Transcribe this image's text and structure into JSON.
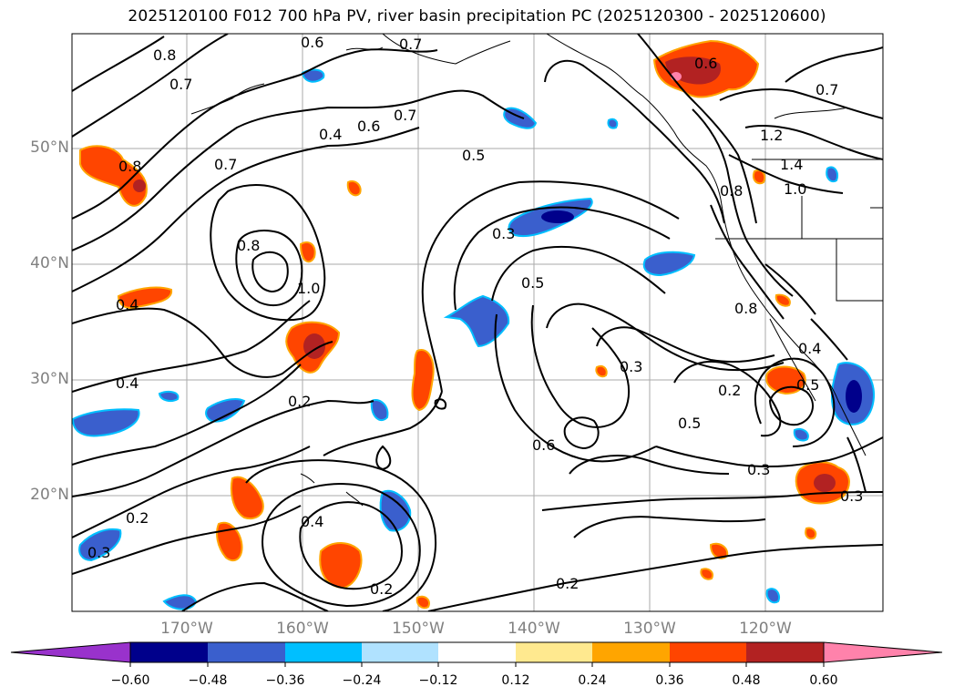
{
  "title": "2025120100 F012 700 hPa PV, river basin precipitation PC (2025120300 - 2025120600)",
  "map": {
    "lat_labels": [
      "50°N",
      "40°N",
      "30°N",
      "20°N"
    ],
    "lon_labels": [
      "170°W",
      "160°W",
      "150°W",
      "140°W",
      "130°W",
      "120°W"
    ],
    "contour_labels": [
      "0.8",
      "0.7",
      "0.6",
      "0.7",
      "0.7",
      "0.6",
      "0.6",
      "0.4",
      "0.7",
      "0.5",
      "0.8",
      "0.7",
      "0.8",
      "1.0",
      "0.3",
      "0.5",
      "0.4",
      "1.2",
      "1.4",
      "1.0",
      "0.8",
      "0.8",
      "0.4",
      "0.3",
      "0.2",
      "0.5",
      "0.4",
      "0.5",
      "0.6",
      "0.3",
      "0.3",
      "0.2",
      "0.2",
      "0.4",
      "0.2",
      "0.2",
      "0.3"
    ]
  },
  "colorbar": {
    "colors": [
      "#9932CC",
      "#00008B",
      "#3A5FCD",
      "#00BFFF",
      "#B0E2FF",
      "#FFFFFF",
      "#FFE98F",
      "#FFA500",
      "#FF4500",
      "#B22222",
      "#FF82AB"
    ],
    "tick_labels": [
      "−0.60",
      "−0.48",
      "−0.36",
      "−0.24",
      "−0.12",
      "0.12",
      "0.24",
      "0.36",
      "0.48",
      "0.60"
    ]
  }
}
